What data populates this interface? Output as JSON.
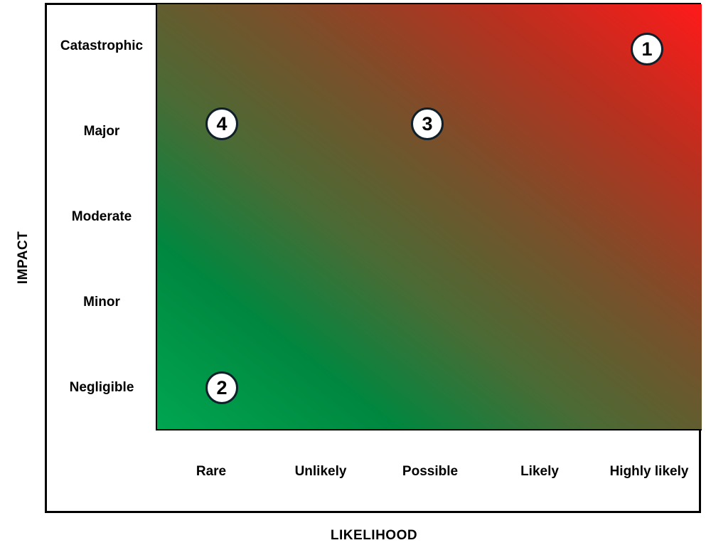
{
  "chart_data": {
    "type": "scatter",
    "xlabel": "LIKELIHOOD",
    "ylabel": "IMPACT",
    "x_categories": [
      "Rare",
      "Unlikely",
      "Possible",
      "Likely",
      "Highly likely"
    ],
    "y_categories": [
      "Negligible",
      "Minor",
      "Moderate",
      "Major",
      "Catastrophic"
    ],
    "points": [
      {
        "label": "1",
        "x": "Highly likely",
        "y": "Catastrophic"
      },
      {
        "label": "2",
        "x": "Rare",
        "y": "Negligible"
      },
      {
        "label": "3",
        "x": "Possible",
        "y": "Major"
      },
      {
        "label": "4",
        "x": "Rare",
        "y": "Major"
      }
    ],
    "background": "gradient from green (low likelihood, low impact) to red (high likelihood, high impact)",
    "colors": {
      "low": "#00a651",
      "mid": "#7a4f2a",
      "high": "#ff1a1a"
    },
    "grid": false,
    "legend": "none"
  }
}
